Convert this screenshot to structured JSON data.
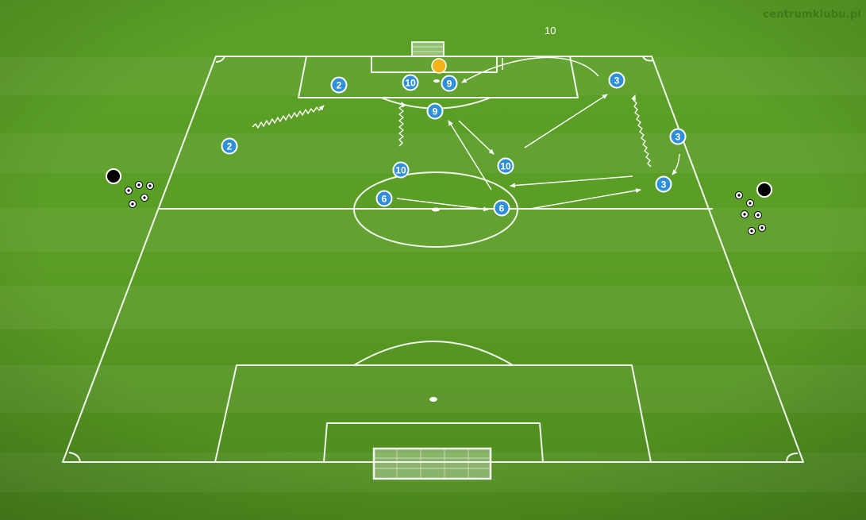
{
  "watermark": "centrumklubu.pl",
  "top_label": "10",
  "colors": {
    "grass_light": "#62a82c",
    "grass_dark": "#4e8d1e",
    "lines": "#ffffff",
    "player_fill": "#2f8fd8",
    "player_ring": "#ffffff",
    "ball_marker": "#f2b418",
    "cone_black": "#000000"
  },
  "players": [
    {
      "num": "2"
    },
    {
      "num": "2"
    },
    {
      "num": "10"
    },
    {
      "num": "9"
    },
    {
      "num": "9"
    },
    {
      "num": "10"
    },
    {
      "num": "10"
    },
    {
      "num": "6"
    },
    {
      "num": "6"
    },
    {
      "num": "3"
    },
    {
      "num": "3"
    },
    {
      "num": "3"
    }
  ],
  "icons": {
    "ball_marker": "yellow-ball-marker-icon",
    "coach": "black-coach-marker-icon",
    "ball": "soccer-ball-icon"
  }
}
